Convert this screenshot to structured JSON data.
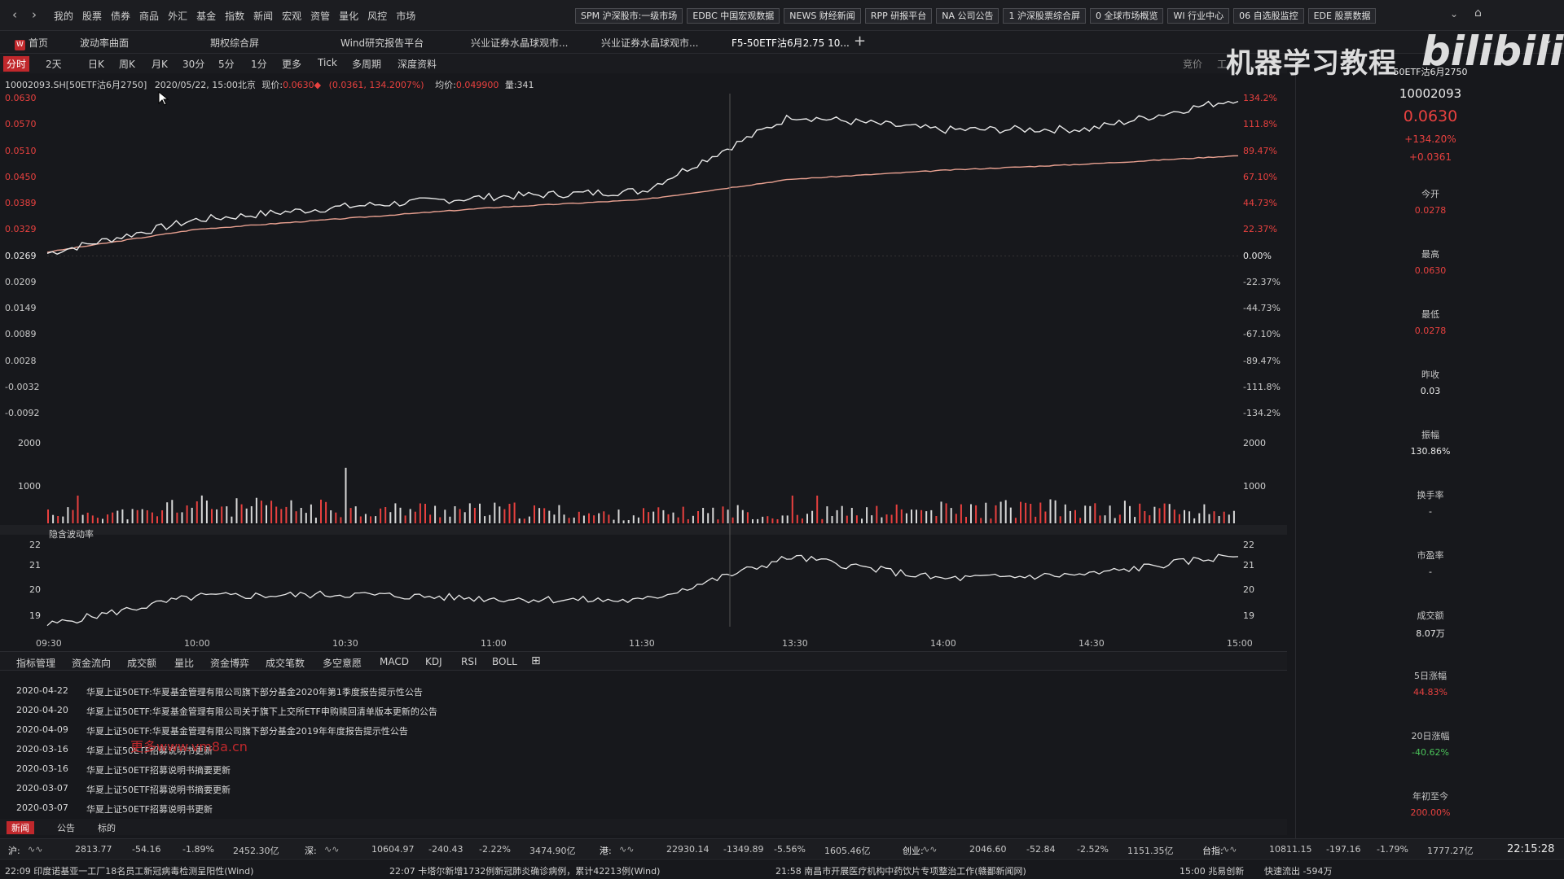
{
  "topbar": {
    "menu": [
      "我的",
      "股票",
      "债券",
      "商品",
      "外汇",
      "基金",
      "指数",
      "新闻",
      "宏观",
      "资管",
      "量化",
      "风控",
      "市场"
    ],
    "quick_buttons": [
      "SPM 沪深股市:一级市场",
      "EDBC 中国宏观数据",
      "NEWS 财经新闻",
      "RPP 研报平台",
      "NA 公司公告",
      "1 沪深股票综合屏",
      "0 全球市场概览",
      "WI 行业中心",
      "06 自选股监控",
      "EDE 股票数据"
    ]
  },
  "tabs": [
    {
      "label": "首页",
      "badge": "W"
    },
    {
      "label": "波动率曲面"
    },
    {
      "label": "期权综合屏"
    },
    {
      "label": "Wind研究报告平台"
    },
    {
      "label": "兴业证券水晶球观市..."
    },
    {
      "label": "兴业证券水晶球观市..."
    },
    {
      "label": "F5-50ETF沽6月2.75 10..."
    }
  ],
  "period_bar": {
    "items": [
      "分时",
      "2天",
      "日K",
      "周K",
      "月K",
      "30分",
      "5分",
      "1分",
      "更多",
      "Tick",
      "多周期",
      "深度资料"
    ],
    "active": "分时",
    "right_labels": [
      "竞价",
      "工"
    ]
  },
  "info": {
    "code": "10002093.SH[50ETF沽6月2750]",
    "datetime": "2020/05/22, 15:00北京",
    "price_label": "现价:",
    "price": "0.0630",
    "change": "(0.0361, 134.2007%)",
    "avg_label": "均价:",
    "avg": "0.049900",
    "vol_label": "量:",
    "vol": "341"
  },
  "price_axis_left": [
    "0.0630",
    "0.0570",
    "0.0510",
    "0.0450",
    "0.0389",
    "0.0329",
    "0.0269",
    "0.0209",
    "0.0149",
    "0.0089",
    "0.0028",
    "-0.0032",
    "-0.0092"
  ],
  "price_axis_right": [
    "134.2%",
    "111.8%",
    "89.47%",
    "67.10%",
    "44.73%",
    "22.37%",
    "0.00%",
    "-22.37%",
    "-44.73%",
    "-67.10%",
    "-89.47%",
    "-111.8%",
    "-134.2%"
  ],
  "volume_axis": [
    "2000",
    "1000"
  ],
  "iv_axis": [
    "22",
    "21",
    "20",
    "19"
  ],
  "iv_title": "隐含波动率",
  "time_axis": [
    "09:30",
    "10:00",
    "10:30",
    "11:00",
    "11:30",
    "13:30",
    "14:00",
    "14:30",
    "15:00"
  ],
  "indicator_tabs": [
    "指标管理",
    "资金流向",
    "成交额",
    "量比",
    "资金博弈",
    "成交笔数",
    "多空意愿",
    "MACD",
    "KDJ",
    "RSI",
    "BOLL"
  ],
  "news": [
    {
      "date": "2020-04-22",
      "title": "华夏上证50ETF:华夏基金管理有限公司旗下部分基金2020年第1季度报告提示性公告"
    },
    {
      "date": "2020-04-20",
      "title": "华夏上证50ETF:华夏基金管理有限公司关于旗下上交所ETF申购赎回清单版本更新的公告"
    },
    {
      "date": "2020-04-09",
      "title": "华夏上证50ETF:华夏基金管理有限公司旗下部分基金2019年年度报告提示性公告"
    },
    {
      "date": "2020-03-16",
      "title": "华夏上证50ETF招募说明书更新"
    },
    {
      "date": "2020-03-16",
      "title": "华夏上证50ETF招募说明书摘要更新"
    },
    {
      "date": "2020-03-07",
      "title": "华夏上证50ETF招募说明书摘要更新"
    },
    {
      "date": "2020-03-07",
      "title": "华夏上证50ETF招募说明书更新"
    }
  ],
  "watermark_url": "更多www.vm8a.cn",
  "news_tabs": [
    "新闻",
    "公告",
    "标的"
  ],
  "index_bar": [
    {
      "name": "沪:",
      "price": "2813.77",
      "chg": "-54.16",
      "pct": "-1.89%",
      "amt": "2452.30亿"
    },
    {
      "name": "深:",
      "price": "10604.97",
      "chg": "-240.43",
      "pct": "-2.22%",
      "amt": "3474.90亿"
    },
    {
      "name": "港:",
      "price": "22930.14",
      "chg": "-1349.89",
      "pct": "-5.56%",
      "amt": "1605.46亿"
    },
    {
      "name": "创业:",
      "price": "2046.60",
      "chg": "-52.84",
      "pct": "-2.52%",
      "amt": "1151.35亿"
    },
    {
      "name": "台指:",
      "price": "10811.15",
      "chg": "-197.16",
      "pct": "-1.79%",
      "amt": "1777.27亿"
    }
  ],
  "clock": "22:15:28",
  "ticker": [
    "22:09 印度诺基亚一工厂18名员工新冠病毒检测呈阳性(Wind)",
    "22:07 卡塔尔新增1732例新冠肺炎确诊病例，累计42213例(Wind)",
    "21:58 南昌市开展医疗机构中药饮片专项整治工作(赣鄱新闻网)"
  ],
  "ticker_right": [
    "15:00 兆易创新",
    "快速流出 -594万"
  ],
  "right_panel": {
    "name": "50ETF沽6月2750",
    "code": "10002093",
    "price": "0.0630",
    "pct": "+134.20%",
    "chg": "+0.0361",
    "fields": [
      {
        "label": "今开",
        "value": "0.0278",
        "color": "#e8413f"
      },
      {
        "label": "最高",
        "value": "0.0630",
        "color": "#e8413f"
      },
      {
        "label": "最低",
        "value": "0.0278",
        "color": "#e8413f"
      },
      {
        "label": "昨收",
        "value": "0.03",
        "color": "#eaeaea"
      },
      {
        "label": "振幅",
        "value": "130.86%",
        "color": "#eaeaea"
      },
      {
        "label": "换手率",
        "value": "-",
        "color": "#eaeaea"
      },
      {
        "label": "市盈率",
        "value": "-",
        "color": "#eaeaea"
      },
      {
        "label": "成交额",
        "value": "8.07万",
        "color": "#eaeaea"
      },
      {
        "label": "5日涨幅",
        "value": "44.83%",
        "color": "#e8413f"
      },
      {
        "label": "20日涨幅",
        "value": "-40.62%",
        "color": "#4bc45a"
      },
      {
        "label": "年初至今",
        "value": "200.00%",
        "color": "#e8413f"
      }
    ]
  },
  "brand": {
    "text": "机器学习教程",
    "logo": "bilibili"
  },
  "colors": {
    "up": "#e8413f",
    "down": "#4bc45a",
    "bg": "#17181c",
    "accent": "#c0282c",
    "avg_line": "#e8a090"
  },
  "chart_data": [
    {
      "type": "line",
      "x": [
        "09:30",
        "10:00",
        "10:30",
        "11:00",
        "11:30",
        "13:30",
        "14:00",
        "14:30",
        "15:00"
      ],
      "series": [
        {
          "values": [
            0.0275,
            0.0352,
            0.0382,
            0.0405,
            0.0418,
            0.059,
            0.0558,
            0.056,
            0.063
          ]
        },
        {
          "values": [
            0.0278,
            0.033,
            0.0355,
            0.038,
            0.0398,
            0.0445,
            0.0465,
            0.048,
            0.0499
          ]
        }
      ],
      "ylim": [
        -0.0092,
        0.063
      ]
    },
    {
      "type": "bar",
      "ylim": [
        0,
        2000
      ],
      "values": [
        300,
        250,
        460,
        400,
        380,
        340,
        360,
        330,
        300,
        220,
        260,
        300,
        210,
        280,
        310,
        350,
        380,
        330,
        360,
        300
      ]
    },
    {
      "type": "line",
      "title": "隐含波动率",
      "x": [
        "09:30",
        "10:00",
        "10:30",
        "11:00",
        "11:30",
        "13:30",
        "14:00",
        "14:30",
        "15:00"
      ],
      "series": [
        {
          "values": [
            18.8,
            20.1,
            20.2,
            20.0,
            19.9,
            21.9,
            20.9,
            21.1,
            22.0
          ]
        }
      ],
      "ylim": [
        18.5,
        22.5
      ]
    }
  ]
}
